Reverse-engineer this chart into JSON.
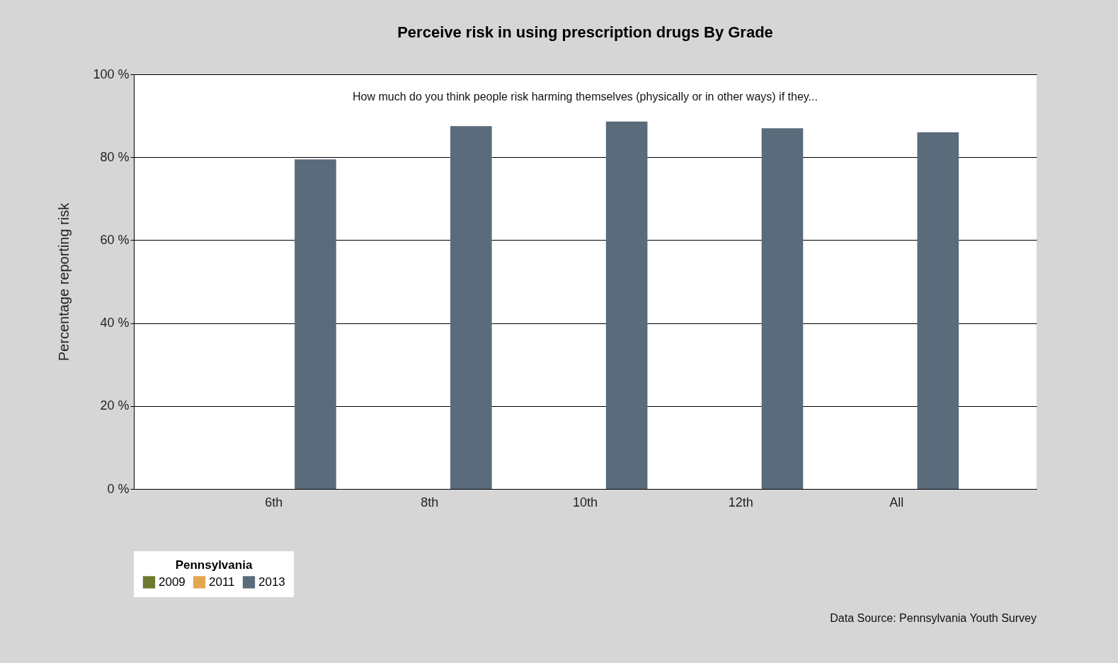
{
  "chart_data": {
    "type": "bar",
    "title": "Perceive risk in using prescription drugs By Grade",
    "subtitle": "How much do you think people risk harming themselves (physically or in other ways) if they...",
    "ylabel": "Percentage reporting risk",
    "legend_title": "Pennsylvania",
    "categories": [
      "6th",
      "8th",
      "10th",
      "12th",
      "All"
    ],
    "series": [
      {
        "name": "2009",
        "color": "#6b7a2f",
        "values": [
          null,
          null,
          null,
          null,
          null
        ]
      },
      {
        "name": "2011",
        "color": "#e5a650",
        "values": [
          null,
          null,
          null,
          null,
          null
        ]
      },
      {
        "name": "2013",
        "color": "#5a6b7b",
        "values": [
          79.5,
          87.5,
          88.6,
          87.0,
          86.0
        ]
      }
    ],
    "ylim": [
      0,
      100
    ],
    "yticks": [
      {
        "value": 0,
        "label": "0 %"
      },
      {
        "value": 20,
        "label": "20 %"
      },
      {
        "value": 40,
        "label": "40 %"
      },
      {
        "value": 60,
        "label": "60 %"
      },
      {
        "value": 80,
        "label": "80 %"
      },
      {
        "value": 100,
        "label": "100 %"
      }
    ],
    "grid": "y",
    "legend": "bottom",
    "annotations": [
      "Data Source: Pennsylvania Youth Survey"
    ]
  }
}
